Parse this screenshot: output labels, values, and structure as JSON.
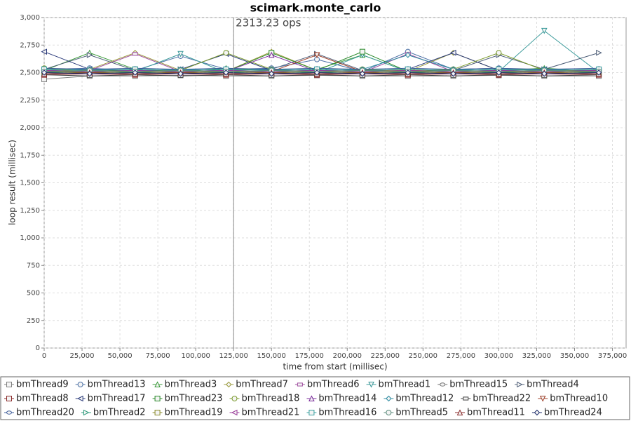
{
  "chart_data": {
    "type": "line",
    "title": "scimark.monte_carlo",
    "x_label": "time from start (millisec)",
    "y_label": "loop result (millisec)",
    "annotation": {
      "text": "2313.23 ops",
      "x": 125000
    },
    "xlim": [
      0,
      384000
    ],
    "ylim": [
      0,
      3000
    ],
    "grid": true,
    "legend": "bottom",
    "xticks": [
      0,
      {
        "value": 25000,
        "label": "25,000"
      },
      {
        "value": 50000,
        "label": "50,000"
      },
      {
        "value": 75000,
        "label": "75,000"
      },
      {
        "value": 100000,
        "label": "100,000"
      },
      {
        "value": 125000,
        "label": "125,000"
      },
      {
        "value": 150000,
        "label": "150,000"
      },
      {
        "value": 175000,
        "label": "175,000"
      },
      {
        "value": 200000,
        "label": "200,000"
      },
      {
        "value": 225000,
        "label": "225,000"
      },
      {
        "value": 250000,
        "label": "250,000"
      },
      {
        "value": 275000,
        "label": "275,000"
      },
      {
        "value": 300000,
        "label": "300,000"
      },
      {
        "value": 325000,
        "label": "325,000"
      },
      {
        "value": 350000,
        "label": "350,000"
      },
      {
        "value": 375000,
        "label": "375,000"
      }
    ],
    "yticks": [
      0,
      250,
      500,
      750,
      {
        "value": 1000,
        "label": "1,000"
      },
      {
        "value": 1250,
        "label": "1,250"
      },
      {
        "value": 1500,
        "label": "1,500"
      },
      {
        "value": 1750,
        "label": "1,750"
      },
      {
        "value": 2000,
        "label": "2,000"
      },
      {
        "value": 2250,
        "label": "2,250"
      },
      {
        "value": 2500,
        "label": "2,500"
      },
      {
        "value": 2750,
        "label": "2,750"
      },
      {
        "value": 3000,
        "label": "3,000"
      }
    ],
    "x": [
      0,
      30000,
      60000,
      90000,
      120000,
      150000,
      180000,
      210000,
      240000,
      270000,
      300000,
      330000,
      366000
    ],
    "series": [
      {
        "name": "bmThread9",
        "color": "#808080",
        "marker": "square",
        "values": [
          2440,
          2470,
          2470,
          2475,
          2470,
          2470,
          2475,
          2470,
          2470,
          2470,
          2475,
          2470,
          2470
        ]
      },
      {
        "name": "bmThread13",
        "color": "#4a6fa5",
        "marker": "circle",
        "values": [
          2530,
          2540,
          2520,
          2650,
          2530,
          2540,
          2620,
          2510,
          2690,
          2530,
          2540,
          2520,
          2530
        ]
      },
      {
        "name": "bmThread3",
        "color": "#3a9a3a",
        "marker": "triangle-up",
        "values": [
          2520,
          2680,
          2530,
          2510,
          2540,
          2520,
          2530,
          2660,
          2510,
          2530,
          2520,
          2540,
          2510
        ]
      },
      {
        "name": "bmThread7",
        "color": "#9a9a3a",
        "marker": "diamond",
        "values": [
          2510,
          2530,
          2680,
          2520,
          2510,
          2690,
          2520,
          2530,
          2510,
          2680,
          2520,
          2510,
          2530
        ]
      },
      {
        "name": "bmThread6",
        "color": "#a050a0",
        "marker": "rect",
        "values": [
          2500,
          2520,
          2670,
          2510,
          2500,
          2520,
          2510,
          2500,
          2670,
          2510,
          2500,
          2520,
          2510
        ]
      },
      {
        "name": "bmThread1",
        "color": "#3a9a9a",
        "marker": "triangle-down",
        "values": [
          2510,
          2500,
          2510,
          2670,
          2500,
          2510,
          2500,
          2660,
          2510,
          2500,
          2510,
          2880,
          2500
        ]
      },
      {
        "name": "bmThread15",
        "color": "#707070",
        "marker": "ellipse",
        "values": [
          2490,
          2500,
          2490,
          2500,
          2490,
          2500,
          2490,
          2500,
          2490,
          2500,
          2490,
          2500,
          2490
        ]
      },
      {
        "name": "bmThread4",
        "color": "#50607a",
        "marker": "triangle-right",
        "values": [
          2530,
          2660,
          2520,
          2530,
          2520,
          2530,
          2670,
          2520,
          2530,
          2520,
          2660,
          2530,
          2680
        ]
      },
      {
        "name": "bmThread8",
        "color": "#8a2a2a",
        "marker": "square",
        "values": [
          2480,
          2490,
          2480,
          2490,
          2480,
          2490,
          2480,
          2490,
          2480,
          2490,
          2480,
          2490,
          2480
        ]
      },
      {
        "name": "bmThread17",
        "color": "#2a3a7a",
        "marker": "triangle-left",
        "values": [
          2690,
          2530,
          2520,
          2530,
          2670,
          2520,
          2530,
          2520,
          2530,
          2680,
          2520,
          2530,
          2520
        ]
      },
      {
        "name": "bmThread23",
        "color": "#2a8a2a",
        "marker": "square",
        "values": [
          2520,
          2510,
          2530,
          2520,
          2510,
          2680,
          2520,
          2690,
          2510,
          2520,
          2530,
          2520,
          2510
        ]
      },
      {
        "name": "bmThread18",
        "color": "#7a9a2a",
        "marker": "circle",
        "values": [
          2540,
          2520,
          2530,
          2520,
          2680,
          2530,
          2520,
          2530,
          2520,
          2530,
          2680,
          2520,
          2530
        ]
      },
      {
        "name": "bmThread14",
        "color": "#7a2a9a",
        "marker": "triangle-up",
        "values": [
          2510,
          2520,
          2510,
          2520,
          2510,
          2660,
          2510,
          2520,
          2510,
          2520,
          2510,
          2520,
          2510
        ]
      },
      {
        "name": "bmThread12",
        "color": "#2a8aa0",
        "marker": "diamond",
        "values": [
          2520,
          2530,
          2520,
          2530,
          2520,
          2530,
          2520,
          2530,
          2660,
          2530,
          2520,
          2530,
          2520
        ]
      },
      {
        "name": "bmThread22",
        "color": "#404040",
        "marker": "rect",
        "values": [
          2480,
          2470,
          2480,
          2470,
          2480,
          2470,
          2480,
          2470,
          2480,
          2470,
          2480,
          2470,
          2480
        ]
      },
      {
        "name": "bmThread10",
        "color": "#a0402a",
        "marker": "triangle-down",
        "values": [
          2500,
          2510,
          2500,
          2510,
          2500,
          2510,
          2660,
          2510,
          2500,
          2510,
          2500,
          2510,
          2500
        ]
      },
      {
        "name": "bmThread20",
        "color": "#3a5a9a",
        "marker": "ellipse",
        "values": [
          2540,
          2530,
          2540,
          2530,
          2540,
          2530,
          2540,
          2530,
          2540,
          2530,
          2540,
          2530,
          2540
        ]
      },
      {
        "name": "bmThread2",
        "color": "#2a9a7a",
        "marker": "triangle-right",
        "values": [
          2500,
          2510,
          2500,
          2510,
          2500,
          2510,
          2500,
          2510,
          2500,
          2510,
          2500,
          2510,
          2500
        ]
      },
      {
        "name": "bmThread19",
        "color": "#8a8a2a",
        "marker": "square",
        "values": [
          2510,
          2500,
          2510,
          2500,
          2510,
          2500,
          2510,
          2500,
          2510,
          2500,
          2510,
          2500,
          2510
        ]
      },
      {
        "name": "bmThread21",
        "color": "#9a3a9a",
        "marker": "triangle-left",
        "values": [
          2520,
          2510,
          2520,
          2510,
          2520,
          2510,
          2520,
          2510,
          2520,
          2510,
          2520,
          2510,
          2520
        ]
      },
      {
        "name": "bmThread16",
        "color": "#3aa0a0",
        "marker": "square",
        "values": [
          2530,
          2520,
          2530,
          2520,
          2530,
          2520,
          2530,
          2520,
          2530,
          2520,
          2530,
          2520,
          2530
        ]
      },
      {
        "name": "bmThread5",
        "color": "#5a8a7a",
        "marker": "circle",
        "values": [
          2510,
          2520,
          2510,
          2520,
          2510,
          2520,
          2510,
          2520,
          2510,
          2520,
          2510,
          2520,
          2510
        ]
      },
      {
        "name": "bmThread11",
        "color": "#8a2a2a",
        "marker": "triangle-up",
        "values": [
          2490,
          2500,
          2490,
          2500,
          2490,
          2500,
          2490,
          2500,
          2490,
          2500,
          2490,
          2500,
          2490
        ]
      },
      {
        "name": "bmThread24",
        "color": "#1a2a6a",
        "marker": "diamond",
        "values": [
          2500,
          2490,
          2500,
          2490,
          2500,
          2490,
          2500,
          2490,
          2500,
          2490,
          2500,
          2490,
          2500
        ]
      }
    ]
  }
}
